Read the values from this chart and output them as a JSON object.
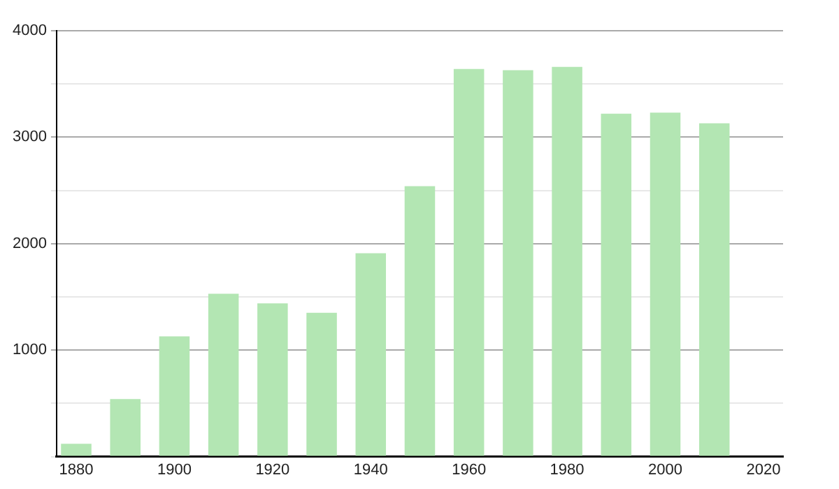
{
  "chart_data": {
    "type": "bar",
    "x": [
      1880,
      1890,
      1900,
      1910,
      1920,
      1930,
      1940,
      1950,
      1960,
      1970,
      1980,
      1990,
      2000,
      2010
    ],
    "values": [
      120,
      540,
      1130,
      1530,
      1440,
      1350,
      1910,
      2540,
      3640,
      3630,
      3660,
      3220,
      3230,
      3130
    ],
    "color": "#b3e6b3",
    "xlim": [
      1876,
      2024
    ],
    "xticks": [
      1880,
      1900,
      1920,
      1940,
      1960,
      1980,
      2000,
      2020
    ],
    "ylim": [
      0,
      4000
    ],
    "yticks": [
      {
        "value": 0,
        "label": null
      },
      {
        "value": 500,
        "label": null
      },
      1000,
      {
        "value": 1500,
        "label": null
      },
      2000,
      {
        "value": 2500,
        "label": null
      },
      3000,
      {
        "value": 3500,
        "label": null
      },
      4000
    ],
    "grid": "y",
    "legend": false
  }
}
